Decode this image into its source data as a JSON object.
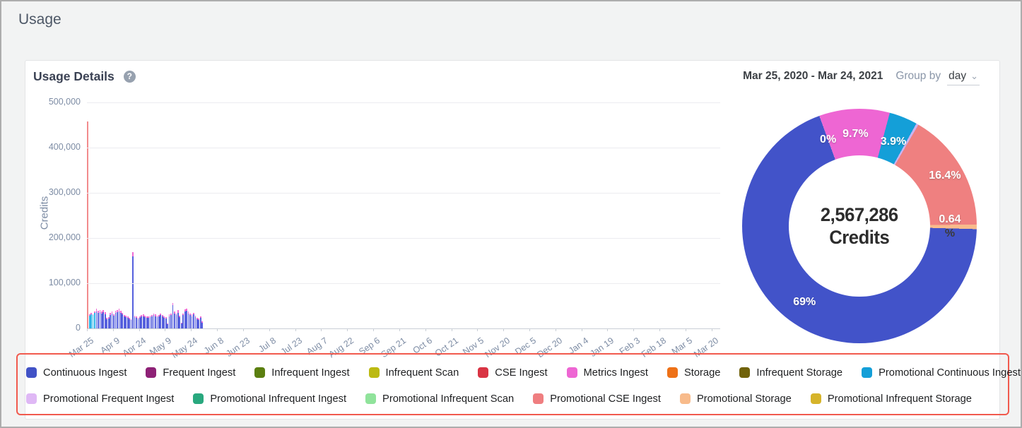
{
  "page": {
    "title": "Usage"
  },
  "card": {
    "title": "Usage Details",
    "date_range": "Mar 25, 2020 - Mar 24, 2021",
    "group_by_label": "Group by",
    "group_by_value": "day"
  },
  "icons": {
    "help": "?",
    "chevron_down": "⌄"
  },
  "colors": {
    "annotation_box": "#f15a4e",
    "axis_text": "#7d8ca4",
    "bar_tip": "#f06ad4"
  },
  "legend": {
    "rows": [
      [
        {
          "label": "Continuous Ingest",
          "color": "#4152c6"
        },
        {
          "label": "Frequent Ingest",
          "color": "#8e2176"
        },
        {
          "label": "Infrequent Ingest",
          "color": "#5b7f10"
        },
        {
          "label": "Infrequent Scan",
          "color": "#bcba12"
        },
        {
          "label": "CSE Ingest",
          "color": "#d93444"
        },
        {
          "label": "Metrics Ingest",
          "color": "#ee66d3"
        },
        {
          "label": "Storage",
          "color": "#ee7117"
        },
        {
          "label": "Infrequent Storage",
          "color": "#70620a"
        },
        {
          "label": "Promotional Continuous Ingest",
          "color": "#149fd8"
        }
      ],
      [
        {
          "label": "Promotional Frequent Ingest",
          "color": "#dfb8f5"
        },
        {
          "label": "Promotional Infrequent Ingest",
          "color": "#29a87e"
        },
        {
          "label": "Promotional Infrequent Scan",
          "color": "#90e39b"
        },
        {
          "label": "Promotional CSE Ingest",
          "color": "#ef7e80"
        },
        {
          "label": "Promotional Storage",
          "color": "#f8bb8b"
        },
        {
          "label": "Promotional Infrequent Storage",
          "color": "#d6b42a"
        }
      ]
    ]
  },
  "chart_data": [
    {
      "type": "bar",
      "title": "Usage Details",
      "xlabel": "",
      "ylabel": "Credits",
      "ylim": [
        0,
        500000
      ],
      "ytick_labels": [
        "0",
        "100,000",
        "200,000",
        "300,000",
        "400,000",
        "500,000"
      ],
      "x_tick_labels": [
        "Mar 25",
        "Apr 9",
        "Apr 24",
        "May 9",
        "May 24",
        "Jun 8",
        "Jun 23",
        "Jul 8",
        "Jul 23",
        "Aug 7",
        "Aug 22",
        "Sep 6",
        "Sep 21",
        "Oct 6",
        "Oct 21",
        "Nov 5",
        "Nov 20",
        "Dec 5",
        "Dec 20",
        "Jan 4",
        "Jan 19",
        "Feb 3",
        "Feb 18",
        "Mar 5",
        "Mar 20"
      ],
      "days_per_tick": 15,
      "total_days": 365,
      "grid": true,
      "bar_colors": {
        "salmon": "#f28b8d",
        "cyan": "#30b5e9",
        "blue": "#5560dd"
      },
      "stack_tip_color": "#f06ad4",
      "bars_note": "stacked daily bars [main_credits, tip_credits, color_key]; data present only Mar 25 - May 30",
      "bars": [
        [
          458000,
          0,
          "salmon"
        ],
        [
          28000,
          3000,
          "cyan"
        ],
        [
          32000,
          3000,
          "cyan"
        ],
        [
          29000,
          3000,
          "cyan"
        ],
        [
          34000,
          3500,
          "cyan"
        ],
        [
          38000,
          5000,
          "blue"
        ],
        [
          35000,
          4000,
          "blue"
        ],
        [
          36000,
          5000,
          "blue"
        ],
        [
          33000,
          4000,
          "blue"
        ],
        [
          36000,
          5000,
          "blue"
        ],
        [
          32000,
          4000,
          "blue"
        ],
        [
          20000,
          3000,
          "blue"
        ],
        [
          22000,
          3000,
          "blue"
        ],
        [
          30000,
          4000,
          "blue"
        ],
        [
          33000,
          4000,
          "blue"
        ],
        [
          28000,
          4000,
          "blue"
        ],
        [
          34000,
          5000,
          "blue"
        ],
        [
          36000,
          5000,
          "blue"
        ],
        [
          38000,
          5000,
          "blue"
        ],
        [
          35000,
          4000,
          "blue"
        ],
        [
          31000,
          4000,
          "blue"
        ],
        [
          27000,
          3000,
          "blue"
        ],
        [
          25000,
          3000,
          "blue"
        ],
        [
          23000,
          3000,
          "blue"
        ],
        [
          21000,
          3000,
          "blue"
        ],
        [
          19000,
          2000,
          "blue"
        ],
        [
          160000,
          8000,
          "blue"
        ],
        [
          25000,
          3000,
          "blue"
        ],
        [
          23000,
          3000,
          "blue"
        ],
        [
          21000,
          3000,
          "blue"
        ],
        [
          24000,
          3000,
          "blue"
        ],
        [
          26000,
          3000,
          "blue"
        ],
        [
          27000,
          4000,
          "blue"
        ],
        [
          25000,
          3000,
          "blue"
        ],
        [
          23000,
          3000,
          "blue"
        ],
        [
          24000,
          3000,
          "blue"
        ],
        [
          25000,
          3000,
          "blue"
        ],
        [
          27000,
          3000,
          "blue"
        ],
        [
          29000,
          4000,
          "blue"
        ],
        [
          27000,
          4000,
          "blue"
        ],
        [
          25000,
          3000,
          "blue"
        ],
        [
          27000,
          3000,
          "blue"
        ],
        [
          29000,
          4000,
          "blue"
        ],
        [
          26000,
          3000,
          "blue"
        ],
        [
          24000,
          3000,
          "blue"
        ],
        [
          22000,
          3000,
          "blue"
        ],
        [
          9000,
          2000,
          "blue"
        ],
        [
          27000,
          4000,
          "blue"
        ],
        [
          29000,
          4000,
          "blue"
        ],
        [
          52000,
          5000,
          "blue"
        ],
        [
          33000,
          4000,
          "blue"
        ],
        [
          29000,
          4000,
          "blue"
        ],
        [
          35000,
          5000,
          "blue"
        ],
        [
          25000,
          3000,
          "blue"
        ],
        [
          11000,
          2000,
          "blue"
        ],
        [
          29000,
          4000,
          "blue"
        ],
        [
          37000,
          5000,
          "blue"
        ],
        [
          39000,
          5000,
          "blue"
        ],
        [
          33000,
          4000,
          "blue"
        ],
        [
          29000,
          4000,
          "blue"
        ],
        [
          27000,
          4000,
          "blue"
        ],
        [
          31000,
          4000,
          "blue"
        ],
        [
          25000,
          3000,
          "blue"
        ],
        [
          21000,
          3000,
          "blue"
        ],
        [
          19000,
          3000,
          "blue"
        ],
        [
          23000,
          3000,
          "blue"
        ],
        [
          13000,
          2000,
          "blue"
        ]
      ]
    },
    {
      "type": "donut",
      "center_value": "2,567,286",
      "center_label": "Credits",
      "start_angle_deg": -20,
      "slices": [
        {
          "name": "zero-usage-group",
          "pct": 0.02,
          "color": "#dfb8f5",
          "label": "0%",
          "label_r": 130
        },
        {
          "name": "Metrics Ingest",
          "pct": 9.7,
          "color": "#ee66d3",
          "label": "9.7%",
          "label_r": 130
        },
        {
          "name": "Promotional Continuous Ingest",
          "pct": 3.9,
          "color": "#149fd8",
          "label": "3.9%",
          "label_r": 128
        },
        {
          "name": "Promotional Frequent Ingest",
          "pct": 0.32,
          "color": "#cbb3f0",
          "label": "",
          "label_r": 130
        },
        {
          "name": "Promotional CSE Ingest",
          "pct": 16.4,
          "color": "#ef8080",
          "label": "16.4%",
          "label_r": 140
        },
        {
          "name": "Promotional Storage",
          "pct": 0.64,
          "color": "#f8bb8c",
          "label": "0.64",
          "label2": "%",
          "label_r": 128
        },
        {
          "name": "Continuous Ingest",
          "pct": 69.02,
          "color": "#4253c9",
          "label": "69%",
          "label_r": 133
        }
      ]
    }
  ]
}
